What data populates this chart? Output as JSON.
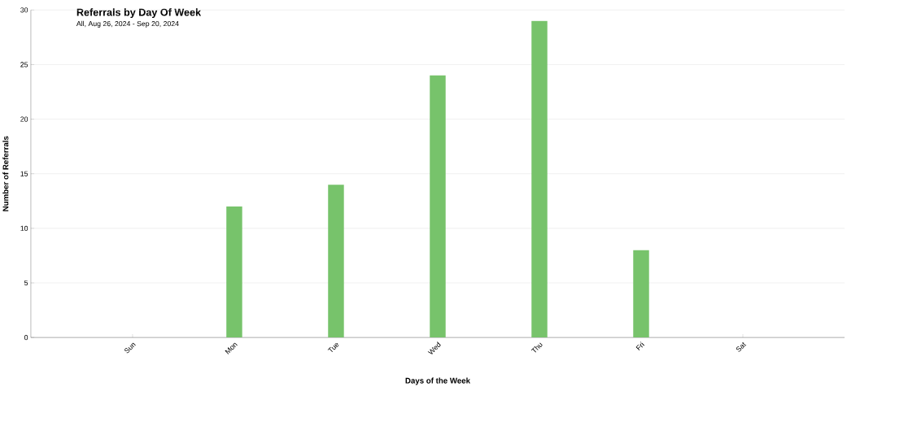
{
  "chart_data": {
    "type": "bar",
    "title": "Referrals by Day Of Week",
    "subtitle": "All, Aug 26, 2024 - Sep 20, 2024",
    "xlabel": "Days of the Week",
    "ylabel": "Number of Referrals",
    "categories": [
      "Sun",
      "Mon",
      "Tue",
      "Wed",
      "Thu",
      "Fri",
      "Sat"
    ],
    "values": [
      0,
      12,
      14,
      24,
      29,
      8,
      0
    ],
    "color": "#77c36b",
    "ylim": [
      0,
      30
    ],
    "yticks": [
      0,
      5,
      10,
      15,
      20,
      25,
      30
    ],
    "grid": "y"
  }
}
